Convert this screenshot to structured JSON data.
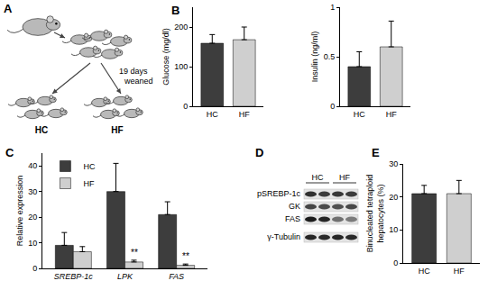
{
  "chart_data": [
    {
      "panel": "B",
      "type": "bar",
      "ylabel": "Glucose (mg/dl)",
      "categories": [
        "HC",
        "HF"
      ],
      "values": [
        159,
        168
      ],
      "errors": [
        22,
        32
      ],
      "colors": [
        "#3d3d3d",
        "#cfcfcf"
      ],
      "ylim": [
        0,
        250
      ],
      "yticks": [
        0,
        100,
        200
      ]
    },
    {
      "type": "bar",
      "ylabel": "Insulin (ng/ml)",
      "categories": [
        "HC",
        "HF"
      ],
      "values": [
        0.4,
        0.6
      ],
      "errors": [
        0.15,
        0.26
      ],
      "colors": [
        "#3d3d3d",
        "#cfcfcf"
      ],
      "ylim": [
        0,
        1
      ],
      "yticks": [
        0,
        0.5,
        1
      ]
    },
    {
      "panel": "C",
      "type": "bar",
      "ylabel": "Relative expression",
      "categories": [
        "SREBP-1c",
        "LPK",
        "FAS"
      ],
      "series": [
        {
          "name": "HC",
          "color": "#3d3d3d",
          "values": [
            9,
            30,
            21
          ],
          "errors": [
            5,
            11,
            5
          ]
        },
        {
          "name": "HF",
          "color": "#cfcfcf",
          "values": [
            6.5,
            2.5,
            1.2
          ],
          "errors": [
            2,
            0.7,
            0.5
          ]
        }
      ],
      "ylim": [
        0,
        45
      ],
      "yticks": [
        0,
        10,
        20,
        30,
        40
      ],
      "legend": "top-left",
      "annotations": [
        {
          "text": "**",
          "category": "LPK",
          "series": "HF"
        },
        {
          "text": "**",
          "category": "FAS",
          "series": "HF"
        }
      ]
    },
    {
      "panel": "E",
      "type": "bar",
      "ylabel": "Binucleated tetraploid hepatocytes (%)",
      "categories": [
        "HC",
        "HF"
      ],
      "values": [
        21,
        21
      ],
      "errors": [
        2.5,
        4
      ],
      "colors": [
        "#3d3d3d",
        "#cfcfcf"
      ],
      "ylim": [
        0,
        30
      ],
      "yticks": [
        0,
        10,
        20,
        30
      ]
    }
  ],
  "diagram": {
    "panel": "A",
    "text": "19 days weaned",
    "groups": [
      "HC",
      "HF"
    ]
  },
  "blot": {
    "panel": "D",
    "lanes": [
      "HC",
      "HF"
    ],
    "rows": [
      "pSREBP-1c",
      "GK",
      "FAS",
      "γ-Tubulin"
    ]
  }
}
